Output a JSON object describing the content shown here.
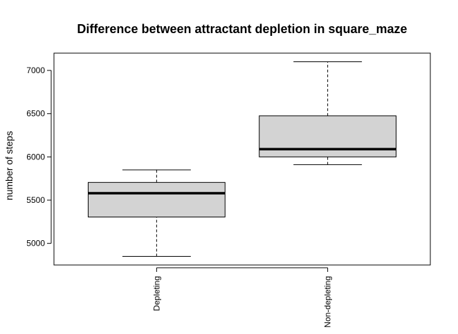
{
  "chart_data": {
    "type": "boxplot",
    "title": "Difference between attractant depletion in square_maze",
    "xlabel": "",
    "ylabel": "number of steps",
    "ylim": [
      4750,
      7200
    ],
    "yticks": [
      5000,
      5500,
      6000,
      6500,
      7000
    ],
    "categories": [
      "Depleting",
      "Non-depleting"
    ],
    "boxes": [
      {
        "category": "Depleting",
        "min": 4850,
        "q1": 5305,
        "median": 5580,
        "q3": 5705,
        "max": 5850
      },
      {
        "category": "Non-depleting",
        "min": 5910,
        "q1": 6000,
        "median": 6090,
        "q3": 6475,
        "max": 7100
      }
    ],
    "box_fill": "#d3d3d3",
    "grid": false
  }
}
